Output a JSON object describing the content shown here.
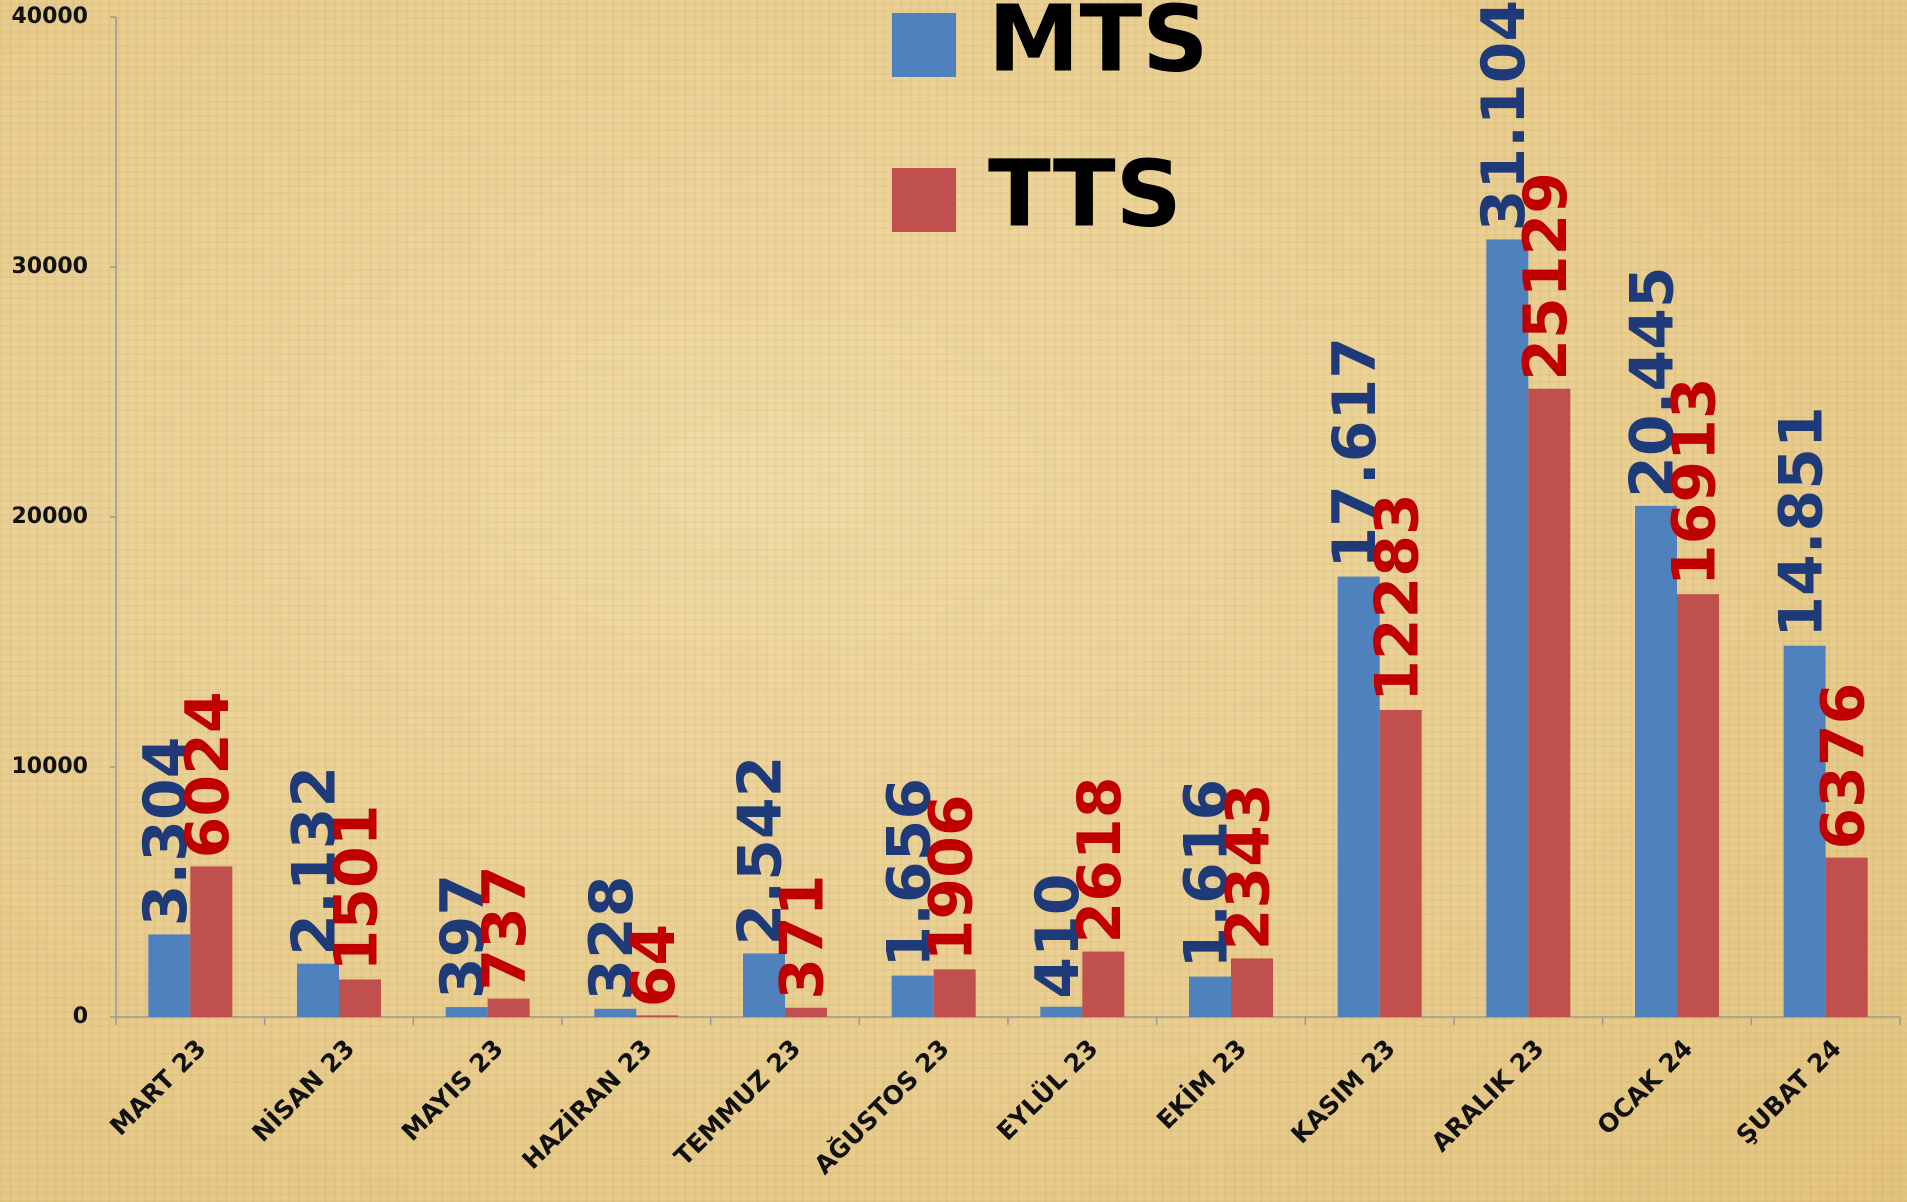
{
  "chart_data": {
    "type": "bar",
    "categories": [
      "MART 23",
      "NİSAN 23",
      "MAYIS 23",
      "HAZİRAN 23",
      "TEMMUZ 23",
      "AĞUSTOS 23",
      "EYLÜL 23",
      "EKİM 23",
      "KASIM 23",
      "ARALIK 23",
      "OCAK 24",
      "ŞUBAT 24"
    ],
    "series": [
      {
        "name": "MTS",
        "color": "#4f81bd",
        "label_color": "#1f3a78",
        "values": [
          3304,
          2132,
          397,
          328,
          2542,
          1656,
          410,
          1616,
          17617,
          31104,
          20445,
          14851
        ],
        "value_labels": [
          "3.304",
          "2.132",
          "397",
          "328",
          "2.542",
          "1.656",
          "410",
          "1.616",
          "17.617",
          "31.104",
          "20.445",
          "14.851"
        ]
      },
      {
        "name": "TTS",
        "color": "#c0504d",
        "label_color": "#c00000",
        "values": [
          6024,
          1501,
          737,
          64,
          371,
          1906,
          2618,
          2343,
          12283,
          25129,
          16913,
          6376
        ]
      }
    ],
    "ylim": [
      0,
      40000
    ],
    "yticks": [
      0,
      10000,
      20000,
      30000,
      40000
    ]
  }
}
